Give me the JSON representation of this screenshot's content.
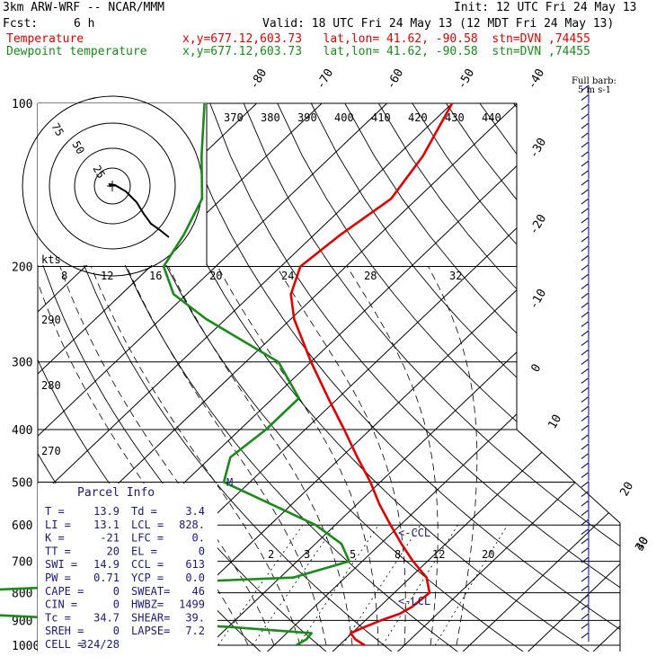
{
  "header": {
    "model": "3km ARW-WRF -- NCAR/MMM",
    "init": "Init: 12 UTC Fri 24 May 13",
    "fcst_label": "Fcst:",
    "fcst_value": "6 h",
    "valid": "Valid: 18 UTC Fri 24 May 13 (12 MDT Fri 24 May 13)",
    "temp_label": "Temperature",
    "temp_info": "x,y=677.12,603.73   lat,lon= 41.62, -90.58  stn=DVN ,74455",
    "dew_label": "Dewpoint temperature",
    "dew_info": "x,y=677.12,603.73   lat,lon= 41.62, -90.58  stn=DVN ,74455",
    "barb_label": "Full barb:",
    "barb_unit": "5 m s-1"
  },
  "hodograph": {
    "ring_labels": [
      "75",
      "50",
      "25"
    ],
    "axis_label": "kts"
  },
  "parcel_info": {
    "title": "Parcel Info",
    "rows": [
      [
        "T  =",
        "13.9",
        "Td =",
        "3.4"
      ],
      [
        "LI =",
        "13.1",
        "LCL =",
        "828."
      ],
      [
        "K  =",
        "-21",
        "LFC =",
        "0."
      ],
      [
        "TT =",
        "20",
        "EL =",
        "0"
      ],
      [
        "SWI =",
        "14.9",
        "CCL =",
        "613"
      ],
      [
        "PW =",
        "0.71",
        "YCP =",
        "0.0"
      ],
      [
        "CAPE =",
        "0",
        "SWEAT=",
        "46"
      ],
      [
        "CIN =",
        "0",
        "HWBZ=",
        "1499"
      ],
      [
        "Tc =",
        "34.7",
        "SHEAR=",
        "39."
      ],
      [
        "SREH =",
        "0",
        "LAPSE=",
        "7.2"
      ],
      [
        "CELL =",
        "324/28",
        "",
        ""
      ]
    ]
  },
  "annotations": {
    "ccl": "<-CCL",
    "lcl": "<-LCL",
    "m_marker": "M"
  },
  "colors": {
    "temperature": "#e00000",
    "dewpoint": "#1a8a1a",
    "barbs": "#1a1a7a",
    "grid": "#000000"
  },
  "chart_data": {
    "type": "line",
    "title": "Skew-T log-P sounding",
    "pressure_ticks": [
      100,
      200,
      300,
      400,
      500,
      600,
      700,
      800,
      900,
      1000
    ],
    "isotherm_labels": [
      "-80",
      "-70",
      "-60",
      "-50",
      "-40",
      "-30",
      "-20",
      "-10",
      "0",
      "10",
      "20",
      "30",
      "40"
    ],
    "theta_labels_top": [
      "370",
      "380",
      "390",
      "400",
      "410",
      "420",
      "430",
      "440"
    ],
    "theta_labels_left": [
      "290",
      "280",
      "270"
    ],
    "mixing_ratio_labels_top": [
      "8",
      "12",
      "16",
      "20",
      "24",
      "28",
      "32"
    ],
    "mixing_ratio_labels_bottom": [
      "2",
      "3",
      "5",
      "8",
      "12",
      "20"
    ],
    "series": [
      {
        "name": "Temperature",
        "points": [
          [
            1000,
            13.9
          ],
          [
            975,
            11.5
          ],
          [
            950,
            9.8
          ],
          [
            925,
            11.0
          ],
          [
            900,
            12.4
          ],
          [
            875,
            14.2
          ],
          [
            850,
            15.0
          ],
          [
            800,
            15.4
          ],
          [
            750,
            12.5
          ],
          [
            700,
            7.8
          ],
          [
            650,
            3.2
          ],
          [
            600,
            -1.5
          ],
          [
            550,
            -6.5
          ],
          [
            500,
            -11.5
          ],
          [
            450,
            -17.5
          ],
          [
            400,
            -24.0
          ],
          [
            350,
            -31.5
          ],
          [
            300,
            -40.0
          ],
          [
            250,
            -49.5
          ],
          [
            225,
            -54.0
          ],
          [
            200,
            -57.0
          ],
          [
            175,
            -56.0
          ],
          [
            150,
            -54.0
          ],
          [
            125,
            -56.0
          ],
          [
            100,
            -60.0
          ]
        ]
      },
      {
        "name": "Dewpoint temperature",
        "points": [
          [
            1000,
            3.4
          ],
          [
            975,
            4.0
          ],
          [
            950,
            3.8
          ],
          [
            925,
            -10.0
          ],
          [
            900,
            -30.0
          ],
          [
            875,
            -52.0
          ],
          [
            850,
            -61.0
          ],
          [
            800,
            -63.0
          ],
          [
            750,
            -8.0
          ],
          [
            700,
            -2.0
          ],
          [
            650,
            -6.0
          ],
          [
            600,
            -13.0
          ],
          [
            550,
            -23.0
          ],
          [
            500,
            -34.0
          ],
          [
            450,
            -37.0
          ],
          [
            400,
            -36.0
          ],
          [
            350,
            -36.0
          ],
          [
            300,
            -45.0
          ],
          [
            250,
            -63.0
          ],
          [
            225,
            -72.0
          ],
          [
            200,
            -78.0
          ],
          [
            175,
            -80.0
          ],
          [
            150,
            -83.0
          ],
          [
            125,
            -90.0
          ],
          [
            100,
            -98.0
          ]
        ]
      }
    ]
  }
}
